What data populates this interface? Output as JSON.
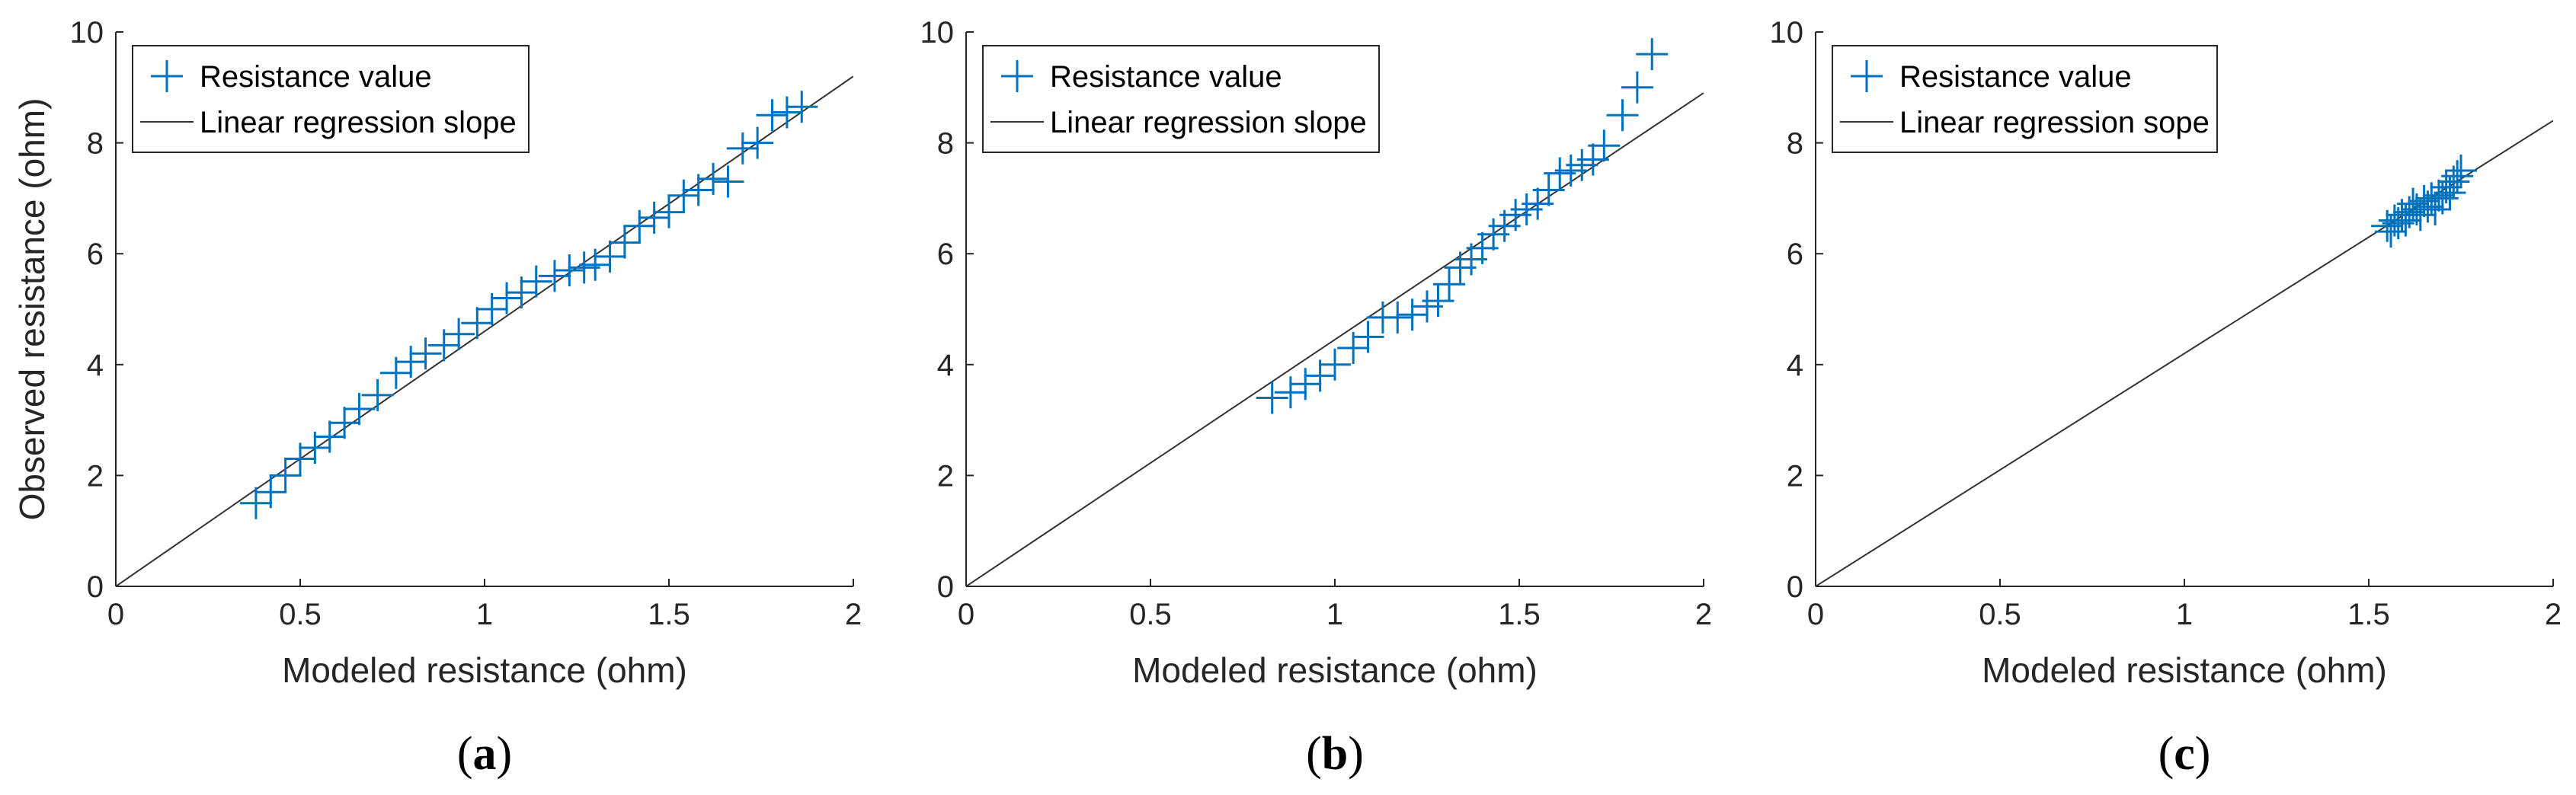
{
  "colors": {
    "marker": "#0072BD",
    "regression": "#333333",
    "axis": "#262626"
  },
  "chart_data": [
    {
      "type": "scatter",
      "panel_label_open": "(",
      "panel_label_letter": "a",
      "panel_label_close": ")",
      "xlabel": "Modeled resistance (ohm)",
      "ylabel": "Observed resistance (ohm)",
      "xlim": [
        0,
        2
      ],
      "ylim": [
        0,
        10
      ],
      "xticks": [
        "0",
        "0.5",
        "1",
        "1.5",
        "2"
      ],
      "yticks": [
        "0",
        "2",
        "4",
        "6",
        "8",
        "10"
      ],
      "legend": {
        "location": "top-left",
        "marker_label": "Resistance value",
        "line_label": "Linear regression slope"
      },
      "regression": {
        "slope": 4.6,
        "intercept": 0
      },
      "series": [
        {
          "name": "Resistance value",
          "x": [
            0.38,
            0.42,
            0.46,
            0.5,
            0.54,
            0.58,
            0.62,
            0.66,
            0.71,
            0.76,
            0.8,
            0.84,
            0.89,
            0.93,
            0.98,
            1.02,
            1.06,
            1.1,
            1.14,
            1.19,
            1.23,
            1.27,
            1.3,
            1.34,
            1.38,
            1.42,
            1.46,
            1.5,
            1.54,
            1.58,
            1.62,
            1.66,
            1.7,
            1.74,
            1.78,
            1.82,
            1.86
          ],
          "y": [
            1.5,
            1.7,
            2.0,
            2.3,
            2.5,
            2.7,
            2.95,
            3.2,
            3.45,
            3.85,
            4.05,
            4.2,
            4.35,
            4.55,
            4.75,
            5.0,
            5.2,
            5.3,
            5.5,
            5.6,
            5.7,
            5.75,
            5.8,
            5.95,
            6.2,
            6.5,
            6.65,
            6.75,
            7.05,
            7.15,
            7.35,
            7.3,
            7.9,
            8.0,
            8.5,
            8.55,
            8.65
          ]
        }
      ]
    },
    {
      "type": "scatter",
      "panel_label_open": "(",
      "panel_label_letter": "b",
      "panel_label_close": ")",
      "xlabel": "Modeled resistance (ohm)",
      "ylabel": "",
      "xlim": [
        0,
        2
      ],
      "ylim": [
        0,
        10
      ],
      "xticks": [
        "0",
        "0.5",
        "1",
        "1.5",
        "2"
      ],
      "yticks": [
        "0",
        "2",
        "4",
        "6",
        "8",
        "10"
      ],
      "legend": {
        "location": "top-left",
        "marker_label": "Resistance value",
        "line_label": "Linear regression slope"
      },
      "regression": {
        "slope": 4.45,
        "intercept": 0
      },
      "series": [
        {
          "name": "Resistance value",
          "x": [
            0.83,
            0.88,
            0.92,
            0.96,
            1.0,
            1.05,
            1.09,
            1.13,
            1.17,
            1.21,
            1.25,
            1.28,
            1.31,
            1.34,
            1.37,
            1.4,
            1.43,
            1.46,
            1.49,
            1.52,
            1.55,
            1.58,
            1.61,
            1.64,
            1.67,
            1.7,
            1.73,
            1.78,
            1.82,
            1.86
          ],
          "y": [
            3.4,
            3.5,
            3.65,
            3.8,
            4.0,
            4.3,
            4.5,
            4.85,
            4.85,
            4.9,
            5.05,
            5.15,
            5.45,
            5.75,
            5.9,
            6.1,
            6.35,
            6.5,
            6.7,
            6.8,
            6.9,
            7.15,
            7.45,
            7.5,
            7.6,
            7.7,
            7.95,
            8.5,
            9.0,
            9.6
          ]
        }
      ]
    },
    {
      "type": "scatter",
      "panel_label_open": "(",
      "panel_label_letter": "c",
      "panel_label_close": ")",
      "xlabel": "Modeled resistance (ohm)",
      "ylabel": "",
      "xlim": [
        0,
        2
      ],
      "ylim": [
        0,
        10
      ],
      "xticks": [
        "0",
        "0.5",
        "1",
        "1.5",
        "2"
      ],
      "yticks": [
        "0",
        "2",
        "4",
        "6",
        "8",
        "10"
      ],
      "legend": {
        "location": "top-left",
        "marker_label": "Resistance value",
        "line_label": "Linear regression sope"
      },
      "regression": {
        "slope": 4.2,
        "intercept": 0
      },
      "series": [
        {
          "name": "Resistance value",
          "x": [
            1.55,
            1.56,
            1.57,
            1.58,
            1.59,
            1.6,
            1.61,
            1.62,
            1.63,
            1.64,
            1.65,
            1.66,
            1.67,
            1.68,
            1.69,
            1.7,
            1.71,
            1.72,
            1.73,
            1.74,
            1.75
          ],
          "y": [
            6.5,
            6.4,
            6.6,
            6.55,
            6.7,
            6.6,
            6.75,
            6.9,
            6.8,
            6.7,
            6.95,
            6.85,
            7.0,
            6.8,
            7.05,
            7.0,
            7.2,
            7.1,
            7.3,
            7.4,
            7.5
          ]
        }
      ]
    }
  ]
}
